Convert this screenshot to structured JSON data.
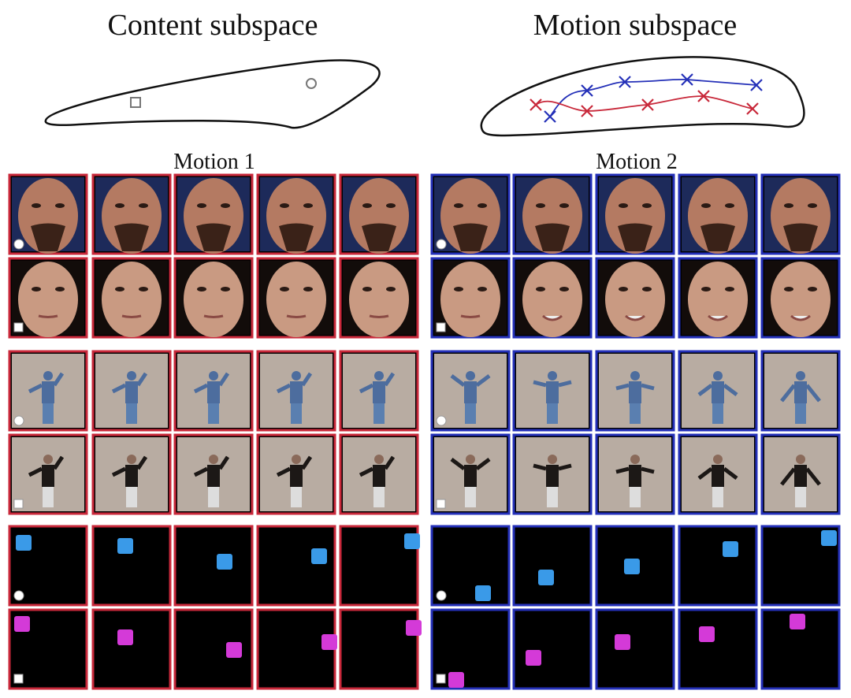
{
  "content_title": "Content subspace",
  "motion_title": "Motion subspace",
  "motion_labels": [
    "Motion 1",
    "Motion 2"
  ]
}
